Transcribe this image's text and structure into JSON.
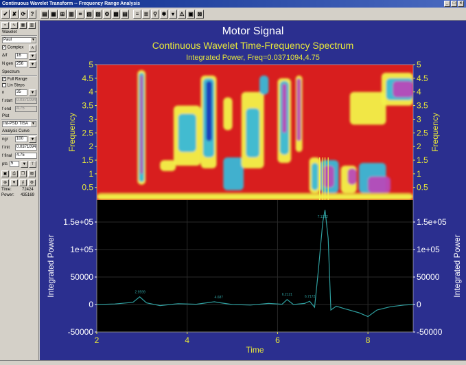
{
  "window": {
    "title": "Continuous Wavelet Transform -- Frequency Range Analysis",
    "controls": [
      "_",
      "□",
      "×"
    ]
  },
  "toolbar": {
    "buttons": [
      "✔",
      "✘",
      "⟳",
      "?",
      "▤",
      "▦",
      "⊞",
      "▥",
      "⌗",
      "▧",
      "▨",
      "⚙",
      "▩",
      "▤",
      "≡",
      "≣",
      "⚲",
      "✱",
      "▾",
      "⚠",
      "▣",
      "⊠"
    ]
  },
  "left_panel": {
    "wavelet_group": "Wavelet",
    "wavelet_type": "Paul",
    "complex_label": "Complex",
    "delta_label": "Δ/f",
    "delta_value": "16",
    "ngen_label": "N gen",
    "ngen_value": "256",
    "spectrum_group": "Spectrum",
    "full_range_label": "Full Range",
    "lin_steps_label": "Lin Steps",
    "n_label": "n",
    "n_value": "35",
    "fstart_label": "f start",
    "fstart_value": "0.0371094",
    "fend_label": "f end",
    "fend_value": "4.75",
    "plot_group": "Plot",
    "plot_mode": "Int-PSD TISA",
    "analysis_group": "Analysis Curve",
    "ngr_label": "ngr",
    "ngr_value": "100",
    "finit_label": "f init",
    "finit_value": "0.0371094",
    "ffinal_label": "f final",
    "ffinal_value": "4.75",
    "pts_label": "pts",
    "pts_value": "5",
    "time_label": "Time:",
    "time_value": "72424",
    "power_label": "Power:",
    "power_value": "435169"
  },
  "plot": {
    "title": "Motor Signal",
    "subtitle": "Continuous Wavelet Time-Frequency Spectrum",
    "subtitle2": "Integrated Power, Freq=0.0371094,4.75",
    "colors": {
      "background": "#2b2f8f",
      "axis_text": "#e8e83a",
      "power_text": "#ffffff",
      "trace": "#2fa0a0",
      "spectrum_red": "#d81e1e"
    }
  },
  "chart_data": [
    {
      "type": "heatmap",
      "title": "Continuous Wavelet Time-Frequency Spectrum",
      "xlabel": "Time",
      "ylabel": "Frequency",
      "xlim": [
        2,
        9
      ],
      "ylim": [
        0.04,
        5
      ],
      "yticks": [
        "0.5",
        "1",
        "1.5",
        "2",
        "2.5",
        "3",
        "3.5",
        "4",
        "4.5",
        "5"
      ]
    },
    {
      "type": "line",
      "xlabel": "Time",
      "ylabel": "Integrated Power",
      "xlim": [
        2,
        9
      ],
      "ylim": [
        -50000,
        190000
      ],
      "xticks": [
        "2",
        "4",
        "6",
        "8"
      ],
      "yticks": [
        "-50000",
        "0",
        "50000",
        "1e+05",
        "1.5e+05"
      ],
      "series": [
        {
          "x": [
            2.0,
            2.4,
            2.8,
            2.95,
            3.1,
            3.4,
            3.8,
            4.2,
            4.6,
            4.75,
            5.0,
            5.4,
            5.8,
            6.1,
            6.21,
            6.35,
            6.6,
            6.71,
            6.82,
            6.9,
            7.0,
            7.05,
            7.12,
            7.18,
            7.3,
            7.5,
            7.8,
            8.0,
            8.2,
            8.5,
            8.8,
            9.0
          ],
          "y": [
            0,
            1000,
            4000,
            14000,
            3000,
            -2000,
            1500,
            500,
            5000,
            3000,
            0,
            -1000,
            2000,
            500,
            9000,
            0,
            2000,
            6000,
            -5000,
            60000,
            150000,
            172000,
            120000,
            -10000,
            -3000,
            -8000,
            -15000,
            -22000,
            -10000,
            -4000,
            -1000,
            0
          ]
        }
      ],
      "annotations": [
        {
          "x": 2.959,
          "label": "2.9599"
        },
        {
          "x": 4.7,
          "label": "4.687"
        },
        {
          "x": 6.2121,
          "label": "6.2121"
        },
        {
          "x": 6.7172,
          "label": "6.7172"
        },
        {
          "x": 7.0,
          "label": "7.1212"
        }
      ]
    }
  ]
}
